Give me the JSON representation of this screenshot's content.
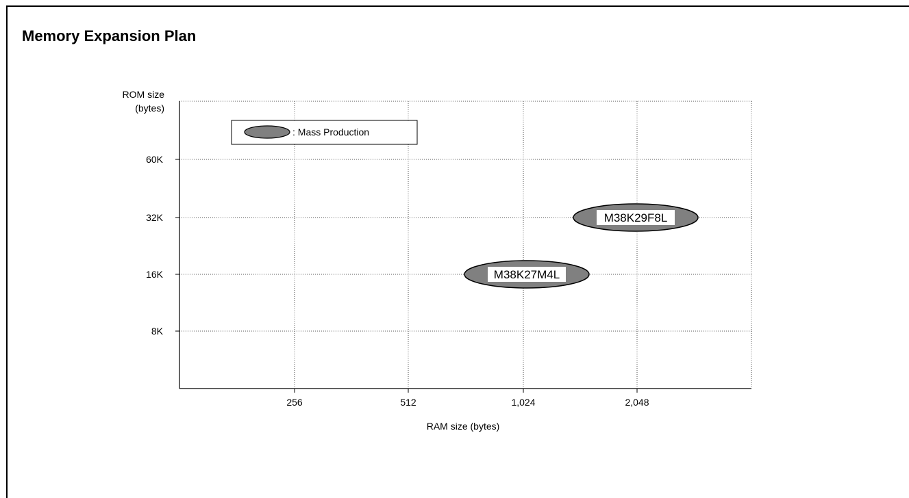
{
  "page": {
    "title": "Memory Expansion Plan"
  },
  "chart_data": {
    "type": "scatter",
    "title": "Memory Expansion Plan",
    "xlabel": "RAM size (bytes)",
    "ylabel_lines": [
      "ROM size",
      "(bytes)"
    ],
    "x_categories": [
      "256",
      "512",
      "1,024",
      "2,048"
    ],
    "y_categories": [
      "8K",
      "16K",
      "32K",
      "60K"
    ],
    "grid": true,
    "legend": {
      "placement": "top-left",
      "entries": [
        {
          "label": ": Mass Production",
          "color": "#808080"
        }
      ]
    },
    "points": [
      {
        "label": "M38K27M4L",
        "x": "1,024",
        "y": "16K",
        "series": ": Mass Production"
      },
      {
        "label": "M38K29F8L",
        "x": "2,048",
        "y": "32K",
        "series": ": Mass Production"
      }
    ],
    "colors": {
      "fill": "#808080",
      "stroke": "#000000",
      "grid": "#555555"
    }
  }
}
